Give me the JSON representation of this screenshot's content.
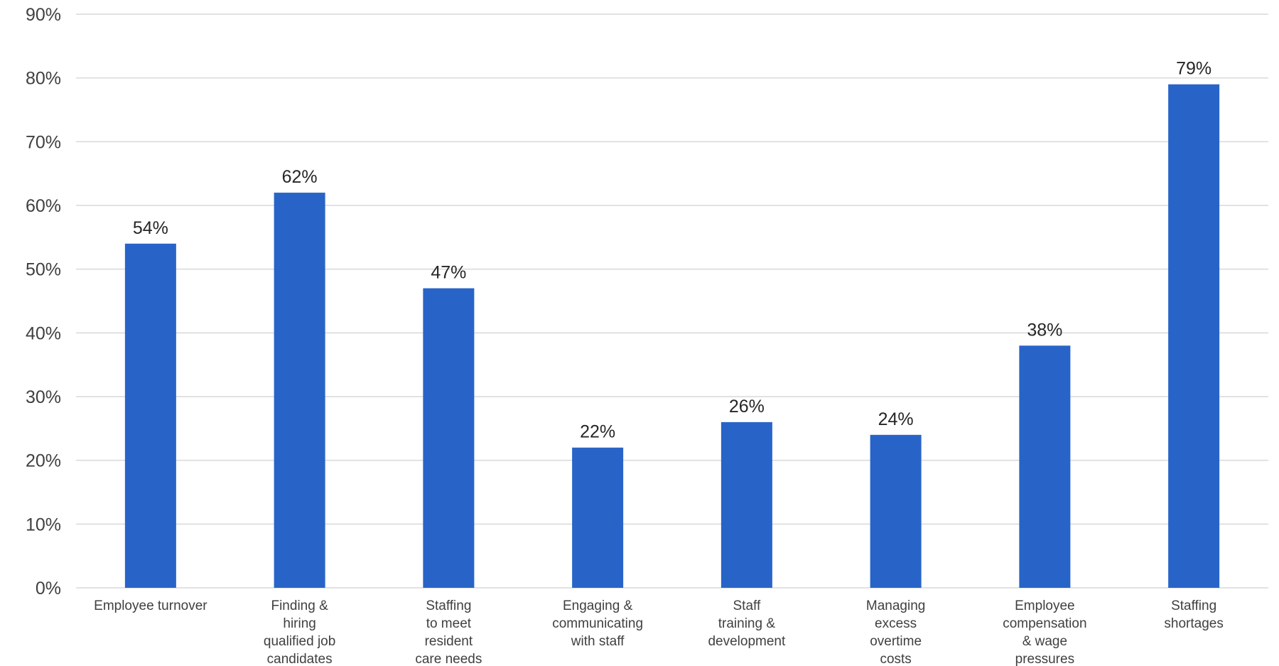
{
  "chart_data": {
    "type": "bar",
    "title": "",
    "xlabel": "",
    "ylabel": "",
    "ylim": [
      0,
      90
    ],
    "yticks": [
      "0%",
      "10%",
      "20%",
      "30%",
      "40%",
      "50%",
      "60%",
      "70%",
      "80%",
      "90%"
    ],
    "grid": true,
    "legend": "none",
    "categories": [
      [
        "Employee turnover"
      ],
      [
        "Finding &",
        "hiring",
        "qualified job",
        "candidates"
      ],
      [
        "Staffing",
        "to meet",
        "resident",
        "care needs"
      ],
      [
        "Engaging &",
        "communicating",
        "with staff"
      ],
      [
        "Staff",
        "training &",
        "development"
      ],
      [
        "Managing",
        "excess",
        "overtime",
        "costs"
      ],
      [
        "Employee",
        "compensation",
        "& wage",
        "pressures"
      ],
      [
        "Staffing",
        "shortages"
      ]
    ],
    "values": [
      54,
      62,
      47,
      22,
      26,
      24,
      38,
      79
    ],
    "data_labels": [
      "54%",
      "62%",
      "47%",
      "22%",
      "26%",
      "24%",
      "38%",
      "79%"
    ],
    "colors": {
      "bar": "#2864c8"
    }
  }
}
